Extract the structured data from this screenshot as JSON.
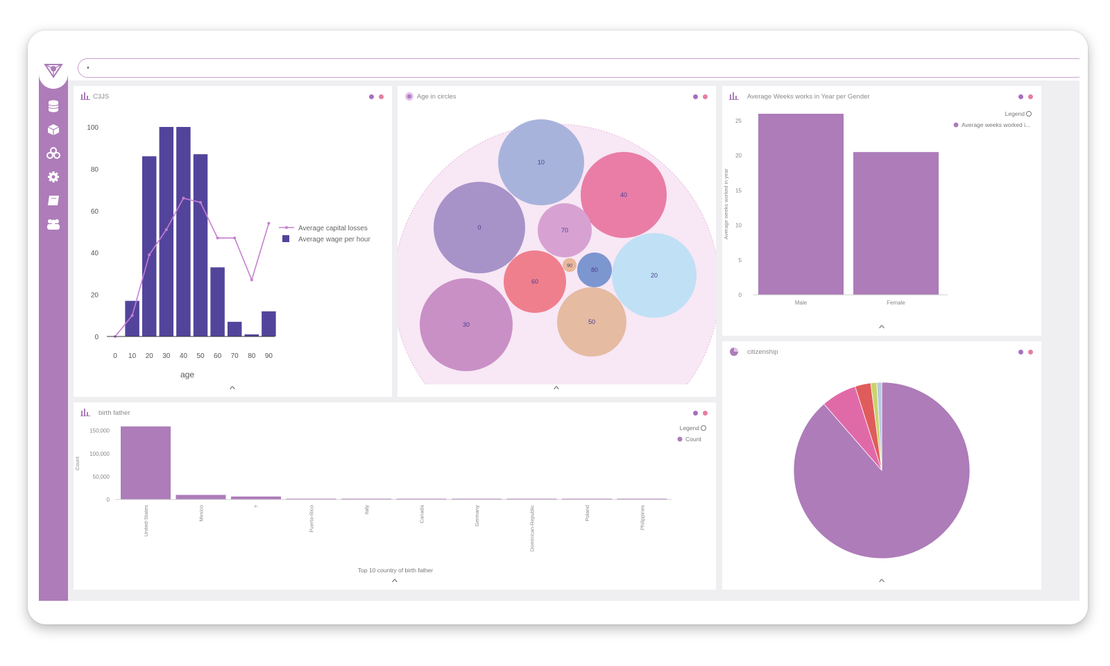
{
  "app": {
    "search": {
      "value": "•",
      "placeholder": ""
    },
    "sidebar": {
      "items": [
        "logo-icon",
        "database-icon",
        "cube-icon",
        "cluster-icon",
        "gear-icon",
        "book-icon",
        "team-icon"
      ]
    }
  },
  "colors": {
    "accent": "#ad7cb9",
    "dot_a": "#a56fbf",
    "dot_b": "#e57ea3",
    "bar_navy": "#53449b",
    "bar_purple": "#ad7cb9",
    "line_violet": "#c77fd1"
  },
  "panels": {
    "c3js": {
      "title": "C3JS",
      "legend": [
        "Average capital losses",
        "Average wage per hour"
      ],
      "chart_data": {
        "type": "bar",
        "categories": [
          "0",
          "10",
          "20",
          "30",
          "40",
          "50",
          "60",
          "70",
          "80",
          "90"
        ],
        "series": [
          {
            "name": "Average wage per hour",
            "kind": "bar",
            "values": [
              0,
              17,
              86,
              100,
              100,
              87,
              33,
              7,
              1,
              12
            ]
          },
          {
            "name": "Average capital losses",
            "kind": "line",
            "values": [
              0,
              10,
              39,
              51,
              66,
              64,
              47,
              47,
              27,
              54
            ]
          }
        ],
        "xlabel": "age",
        "ylabel": "",
        "ylim": [
          0,
          100
        ],
        "yticks": [
          "0",
          "20",
          "40",
          "60",
          "80",
          "100"
        ],
        "legend_position": "right"
      }
    },
    "age_circles": {
      "title": "Age in circles",
      "chart_data": {
        "type": "bubble",
        "bubbles": [
          {
            "label": "0",
            "color": "#a793c8"
          },
          {
            "label": "10",
            "color": "#a8b3dc"
          },
          {
            "label": "20",
            "color": "#bfe0f5"
          },
          {
            "label": "30",
            "color": "#c990c6"
          },
          {
            "label": "40",
            "color": "#e97da6"
          },
          {
            "label": "50",
            "color": "#e5bba2"
          },
          {
            "label": "60",
            "color": "#ef7f8c"
          },
          {
            "label": "70",
            "color": "#d7a2d2"
          },
          {
            "label": "80",
            "color": "#7c96d0"
          },
          {
            "label": "90",
            "color": "#e8b89a"
          }
        ]
      }
    },
    "weeks": {
      "title": "Average Weeks works in Year per Gender",
      "legend_title": "Legend",
      "legend_item": "Average weeks worked i...",
      "chart_data": {
        "type": "bar",
        "categories": [
          "Male",
          "Female"
        ],
        "series": [
          {
            "name": "Average weeks worked i...",
            "values": [
              26,
              20.5
            ]
          }
        ],
        "ylabel": "Average weeks worked in year",
        "ylim": [
          0,
          25
        ],
        "yticks": [
          "0",
          "5",
          "10",
          "15",
          "20",
          "25"
        ],
        "legend_position": "top-right"
      }
    },
    "birth": {
      "title": "birth father",
      "legend_title": "Legend",
      "legend_item": "Count",
      "chart_data": {
        "type": "bar",
        "categories": [
          "United-States",
          "Mexico",
          "?",
          "Puerto-Rico",
          "Italy",
          "Canada",
          "Germany",
          "Dominican-Republic",
          "Poland",
          "Philippines"
        ],
        "series": [
          {
            "name": "Count",
            "values": [
              159000,
              10000,
              6500,
              1500,
              1100,
              1000,
              900,
              800,
              700,
              600
            ]
          }
        ],
        "xlabel": "Top 10 country of birth father",
        "ylabel": "Count",
        "ylim": [
          0,
          160000
        ],
        "yticks": [
          "0",
          "50,000",
          "100,000",
          "150,000"
        ],
        "legend_position": "top-right"
      }
    },
    "citizenship": {
      "title": "citizenship",
      "chart_data": {
        "type": "pie",
        "slices": [
          {
            "value": 88.6,
            "color": "#ad7cb9"
          },
          {
            "value": 6.5,
            "color": "#e06aa8"
          },
          {
            "value": 2.9,
            "color": "#e05c5c"
          },
          {
            "value": 1.1,
            "color": "#c9d46a"
          },
          {
            "value": 0.9,
            "color": "#b9c8e0"
          }
        ]
      }
    }
  }
}
